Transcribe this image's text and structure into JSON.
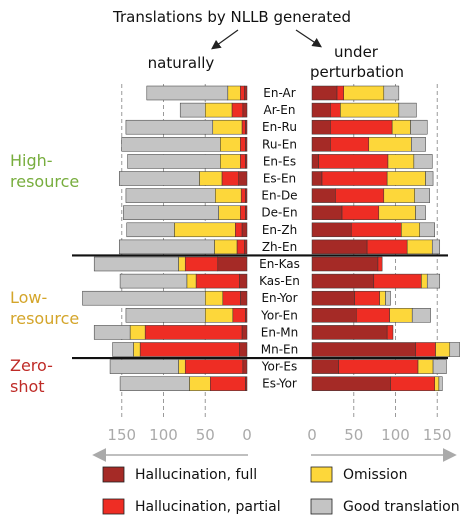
{
  "chart_data": {
    "type": "bar",
    "title": "Translations by NLLB generated",
    "left_panel_label": "naturally",
    "right_panel_label_lines": [
      "under",
      "perturbation"
    ],
    "colors": {
      "hallucination_full": "#a52a26",
      "hallucination_partial": "#ee2d24",
      "omission": "#fdd73a",
      "good": "#c4c4c4",
      "high_resource": "#77ad3d",
      "low_resource": "#d4a52a",
      "zero_shot": "#bf2b27",
      "axis": "#aaaaaa"
    },
    "series": [
      {
        "key": "hallucination_full",
        "name": "Hallucination, full"
      },
      {
        "key": "hallucination_partial",
        "name": "Hallucination, partial"
      },
      {
        "key": "omission",
        "name": "Omission"
      },
      {
        "key": "good",
        "name": "Good translation"
      }
    ],
    "left_axis": {
      "ticks": [
        "150",
        "100",
        "50",
        "0"
      ],
      "tick_values": [
        150,
        100,
        50,
        0
      ],
      "xlim": [
        0,
        150
      ],
      "reversed": true
    },
    "right_axis": {
      "ticks": [
        "0",
        "50",
        "100",
        "150"
      ],
      "tick_values": [
        0,
        50,
        100,
        150
      ],
      "xlim": [
        0,
        150
      ]
    },
    "groups": [
      {
        "label_lines": [
          "High-",
          "resource"
        ],
        "color_key": "high_resource",
        "first": 0,
        "last": 9
      },
      {
        "label_lines": [
          "Low-",
          "resource"
        ],
        "color_key": "low_resource",
        "first": 10,
        "last": 15
      },
      {
        "label_lines": [
          "Zero-",
          "shot"
        ],
        "color_key": "zero_shot",
        "first": 16,
        "last": 17
      }
    ],
    "pairs": [
      {
        "label": "En-Ar",
        "natural": {
          "hallucination_full": 3,
          "hallucination_partial": 5,
          "omission": 15,
          "good": 97
        },
        "perturbation": {
          "hallucination_full": 30,
          "hallucination_partial": 8,
          "omission": 48,
          "good": 18
        }
      },
      {
        "label": "Ar-En",
        "natural": {
          "hallucination_full": 5,
          "hallucination_partial": 13,
          "omission": 32,
          "good": 30
        },
        "perturbation": {
          "hallucination_full": 22,
          "hallucination_partial": 12,
          "omission": 70,
          "good": 21
        }
      },
      {
        "label": "En-Ru",
        "natural": {
          "hallucination_full": 2,
          "hallucination_partial": 4,
          "omission": 35,
          "good": 104
        },
        "perturbation": {
          "hallucination_full": 22,
          "hallucination_partial": 74,
          "omission": 22,
          "good": 20
        }
      },
      {
        "label": "Ru-En",
        "natural": {
          "hallucination_full": 2,
          "hallucination_partial": 6,
          "omission": 24,
          "good": 118
        },
        "perturbation": {
          "hallucination_full": 22,
          "hallucination_partial": 46,
          "omission": 51,
          "good": 17
        }
      },
      {
        "label": "En-Es",
        "natural": {
          "hallucination_full": 2,
          "hallucination_partial": 6,
          "omission": 24,
          "good": 111
        },
        "perturbation": {
          "hallucination_full": 8,
          "hallucination_partial": 83,
          "omission": 31,
          "good": 22
        }
      },
      {
        "label": "Es-En",
        "natural": {
          "hallucination_full": 10,
          "hallucination_partial": 20,
          "omission": 27,
          "good": 96
        },
        "perturbation": {
          "hallucination_full": 12,
          "hallucination_partial": 78,
          "omission": 46,
          "good": 9
        }
      },
      {
        "label": "En-De",
        "natural": {
          "hallucination_full": 2,
          "hallucination_partial": 5,
          "omission": 31,
          "good": 107
        },
        "perturbation": {
          "hallucination_full": 28,
          "hallucination_partial": 58,
          "omission": 37,
          "good": 18
        }
      },
      {
        "label": "De-En",
        "natural": {
          "hallucination_full": 2,
          "hallucination_partial": 6,
          "omission": 26,
          "good": 114
        },
        "perturbation": {
          "hallucination_full": 36,
          "hallucination_partial": 44,
          "omission": 44,
          "good": 12
        }
      },
      {
        "label": "En-Zh",
        "natural": {
          "hallucination_full": 6,
          "hallucination_partial": 8,
          "omission": 73,
          "good": 57
        },
        "perturbation": {
          "hallucination_full": 47,
          "hallucination_partial": 60,
          "omission": 22,
          "good": 18
        }
      },
      {
        "label": "Zh-En",
        "natural": {
          "hallucination_full": 3,
          "hallucination_partial": 9,
          "omission": 27,
          "good": 114
        },
        "perturbation": {
          "hallucination_full": 66,
          "hallucination_partial": 48,
          "omission": 30,
          "good": 9
        }
      },
      {
        "label": "En-Kas",
        "natural": {
          "hallucination_full": 35,
          "hallucination_partial": 39,
          "omission": 8,
          "good": 101
        },
        "perturbation": {
          "hallucination_full": 79,
          "hallucination_partial": 5,
          "omission": 0,
          "good": 0
        }
      },
      {
        "label": "Kas-En",
        "natural": {
          "hallucination_full": 9,
          "hallucination_partial": 52,
          "omission": 11,
          "good": 80
        },
        "perturbation": {
          "hallucination_full": 74,
          "hallucination_partial": 57,
          "omission": 7,
          "good": 15
        }
      },
      {
        "label": "En-Yor",
        "natural": {
          "hallucination_full": 8,
          "hallucination_partial": 21,
          "omission": 21,
          "good": 147
        },
        "perturbation": {
          "hallucination_full": 51,
          "hallucination_partial": 30,
          "omission": 7,
          "good": 6
        }
      },
      {
        "label": "Yor-En",
        "natural": {
          "hallucination_full": 2,
          "hallucination_partial": 15,
          "omission": 33,
          "good": 95
        },
        "perturbation": {
          "hallucination_full": 53,
          "hallucination_partial": 40,
          "omission": 27,
          "good": 22
        }
      },
      {
        "label": "En-Mn",
        "natural": {
          "hallucination_full": 6,
          "hallucination_partial": 116,
          "omission": 18,
          "good": 43
        },
        "perturbation": {
          "hallucination_full": 90,
          "hallucination_partial": 7,
          "omission": 0,
          "good": 0
        }
      },
      {
        "label": "Mn-En",
        "natural": {
          "hallucination_full": 9,
          "hallucination_partial": 119,
          "omission": 8,
          "good": 25
        },
        "perturbation": {
          "hallucination_full": 124,
          "hallucination_partial": 24,
          "omission": 17,
          "good": 12
        }
      },
      {
        "label": "Yor-Es",
        "natural": {
          "hallucination_full": 5,
          "hallucination_partial": 69,
          "omission": 8,
          "good": 82
        },
        "perturbation": {
          "hallucination_full": 32,
          "hallucination_partial": 95,
          "omission": 18,
          "good": 16
        }
      },
      {
        "label": "Es-Yor",
        "natural": {
          "hallucination_full": 2,
          "hallucination_partial": 42,
          "omission": 25,
          "good": 83
        },
        "perturbation": {
          "hallucination_full": 94,
          "hallucination_partial": 53,
          "omission": 5,
          "good": 4
        }
      }
    ]
  }
}
